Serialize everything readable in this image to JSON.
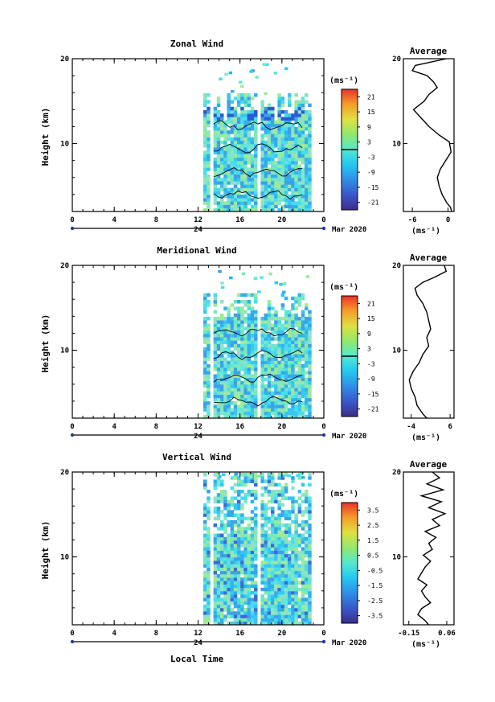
{
  "chart_data": [
    {
      "type": "heatmap",
      "title": "Zonal Wind",
      "xlabel": "",
      "ylabel": "Height (km)",
      "xlim": [
        0,
        24
      ],
      "ylim": [
        2,
        20
      ],
      "xticks": [
        "0",
        "4",
        "8",
        "12",
        "16",
        "20",
        "0"
      ],
      "yticks": [
        "20",
        "10"
      ],
      "date_axis": {
        "center_label": "24",
        "right_label": "Mar 2020"
      },
      "data_extent": {
        "x_start": 12.5,
        "x_end": 22.5,
        "max_height": 16
      },
      "colorbar": {
        "units": "(ms⁻¹)",
        "ticks": [
          "21",
          "15",
          "9",
          "3",
          "-3",
          "-9",
          "-15",
          "-21"
        ],
        "range": [
          -24,
          24
        ]
      },
      "profile": {
        "title": "Average",
        "xlabel": "(ms⁻¹)",
        "xticks": [
          "-6",
          "0"
        ],
        "yticks": [
          "20",
          "10"
        ],
        "xlim": [
          -7.5,
          1
        ],
        "points": [
          [
            -0.3,
            20
          ],
          [
            -5.5,
            19.2
          ],
          [
            -6.0,
            18.6
          ],
          [
            -3.5,
            18.0
          ],
          [
            -2.5,
            17.3
          ],
          [
            -1.8,
            16.6
          ],
          [
            -3.2,
            15.8
          ],
          [
            -4.0,
            15.0
          ],
          [
            -5.8,
            14.0
          ],
          [
            -4.5,
            13.0
          ],
          [
            -3.2,
            12.0
          ],
          [
            -1.5,
            11.0
          ],
          [
            0.2,
            10.2
          ],
          [
            0.5,
            9.0
          ],
          [
            -0.4,
            8.0
          ],
          [
            -1.3,
            7.0
          ],
          [
            -1.8,
            6.0
          ],
          [
            -1.5,
            5.0
          ],
          [
            -1.0,
            4.0
          ],
          [
            -0.2,
            3.0
          ],
          [
            0.4,
            2.5
          ],
          [
            0.6,
            2.0
          ]
        ]
      }
    },
    {
      "type": "heatmap",
      "title": "Meridional Wind",
      "xlabel": "",
      "ylabel": "Height (km)",
      "xlim": [
        0,
        24
      ],
      "ylim": [
        2,
        20
      ],
      "xticks": [
        "0",
        "4",
        "8",
        "12",
        "16",
        "20",
        "0"
      ],
      "yticks": [
        "20",
        "10"
      ],
      "date_axis": {
        "center_label": "24",
        "right_label": "Mar 2020"
      },
      "data_extent": {
        "x_start": 12.5,
        "x_end": 22.5,
        "max_height": 17
      },
      "colorbar": {
        "units": "(ms⁻¹)",
        "ticks": [
          "21",
          "15",
          "9",
          "3",
          "-3",
          "-9",
          "-15",
          "-21"
        ],
        "range": [
          -24,
          24
        ]
      },
      "profile": {
        "title": "Average",
        "xlabel": "(ms⁻¹)",
        "xticks": [
          "-4",
          "6"
        ],
        "yticks": [
          "20",
          "10"
        ],
        "xlim": [
          -6,
          7
        ],
        "points": [
          [
            4.5,
            20
          ],
          [
            5.0,
            19.3
          ],
          [
            2.0,
            18.6
          ],
          [
            -1.0,
            18.0
          ],
          [
            -3.0,
            17.3
          ],
          [
            -2.5,
            16.5
          ],
          [
            -1.0,
            15.5
          ],
          [
            0.0,
            14.5
          ],
          [
            0.5,
            13.5
          ],
          [
            1.0,
            12.5
          ],
          [
            0.0,
            11.5
          ],
          [
            0.5,
            10.5
          ],
          [
            -1.0,
            9.5
          ],
          [
            -2.0,
            8.5
          ],
          [
            -3.5,
            7.5
          ],
          [
            -4.5,
            6.5
          ],
          [
            -4.0,
            5.5
          ],
          [
            -3.0,
            4.5
          ],
          [
            -2.5,
            3.5
          ],
          [
            -1.0,
            2.5
          ],
          [
            0.0,
            2.0
          ]
        ]
      }
    },
    {
      "type": "heatmap",
      "title": "Vertical Wind",
      "xlabel": "Local Time",
      "ylabel": "Height (km)",
      "xlim": [
        0,
        24
      ],
      "ylim": [
        2,
        20
      ],
      "xticks": [
        "0",
        "4",
        "8",
        "12",
        "16",
        "20",
        "0"
      ],
      "yticks": [
        "20",
        "10"
      ],
      "date_axis": {
        "center_label": "24",
        "right_label": "Mar 2020"
      },
      "data_extent": {
        "x_start": 12.5,
        "x_end": 22.5,
        "max_height": 20
      },
      "colorbar": {
        "units": "(ms⁻¹)",
        "ticks": [
          "3.5",
          "2.5",
          "1.5",
          "0.5",
          "-0.5",
          "-1.5",
          "-2.5",
          "-3.5"
        ],
        "range": [
          -4,
          4
        ]
      },
      "profile": {
        "title": "Average",
        "xlabel": "(ms⁻¹)",
        "xticks": [
          "-0.15",
          "0.06"
        ],
        "yticks": [
          "20",
          "10"
        ],
        "xlim": [
          -0.18,
          0.1
        ],
        "points": [
          [
            -0.02,
            20
          ],
          [
            0.02,
            19.3
          ],
          [
            -0.05,
            18.6
          ],
          [
            0.04,
            17.9
          ],
          [
            -0.08,
            17.2
          ],
          [
            0.03,
            16.5
          ],
          [
            -0.04,
            15.8
          ],
          [
            0.05,
            15.1
          ],
          [
            -0.02,
            14.4
          ],
          [
            0.02,
            13.7
          ],
          [
            -0.06,
            13.0
          ],
          [
            0.0,
            12.3
          ],
          [
            -0.04,
            11.6
          ],
          [
            -0.02,
            10.9
          ],
          [
            -0.07,
            10.2
          ],
          [
            -0.03,
            9.5
          ],
          [
            -0.06,
            8.8
          ],
          [
            -0.08,
            8.1
          ],
          [
            -0.1,
            7.4
          ],
          [
            -0.05,
            6.7
          ],
          [
            -0.08,
            6.0
          ],
          [
            -0.06,
            5.3
          ],
          [
            -0.03,
            4.6
          ],
          [
            -0.08,
            3.9
          ],
          [
            -0.1,
            3.2
          ],
          [
            -0.06,
            2.5
          ],
          [
            -0.04,
            2.0
          ]
        ]
      }
    }
  ]
}
